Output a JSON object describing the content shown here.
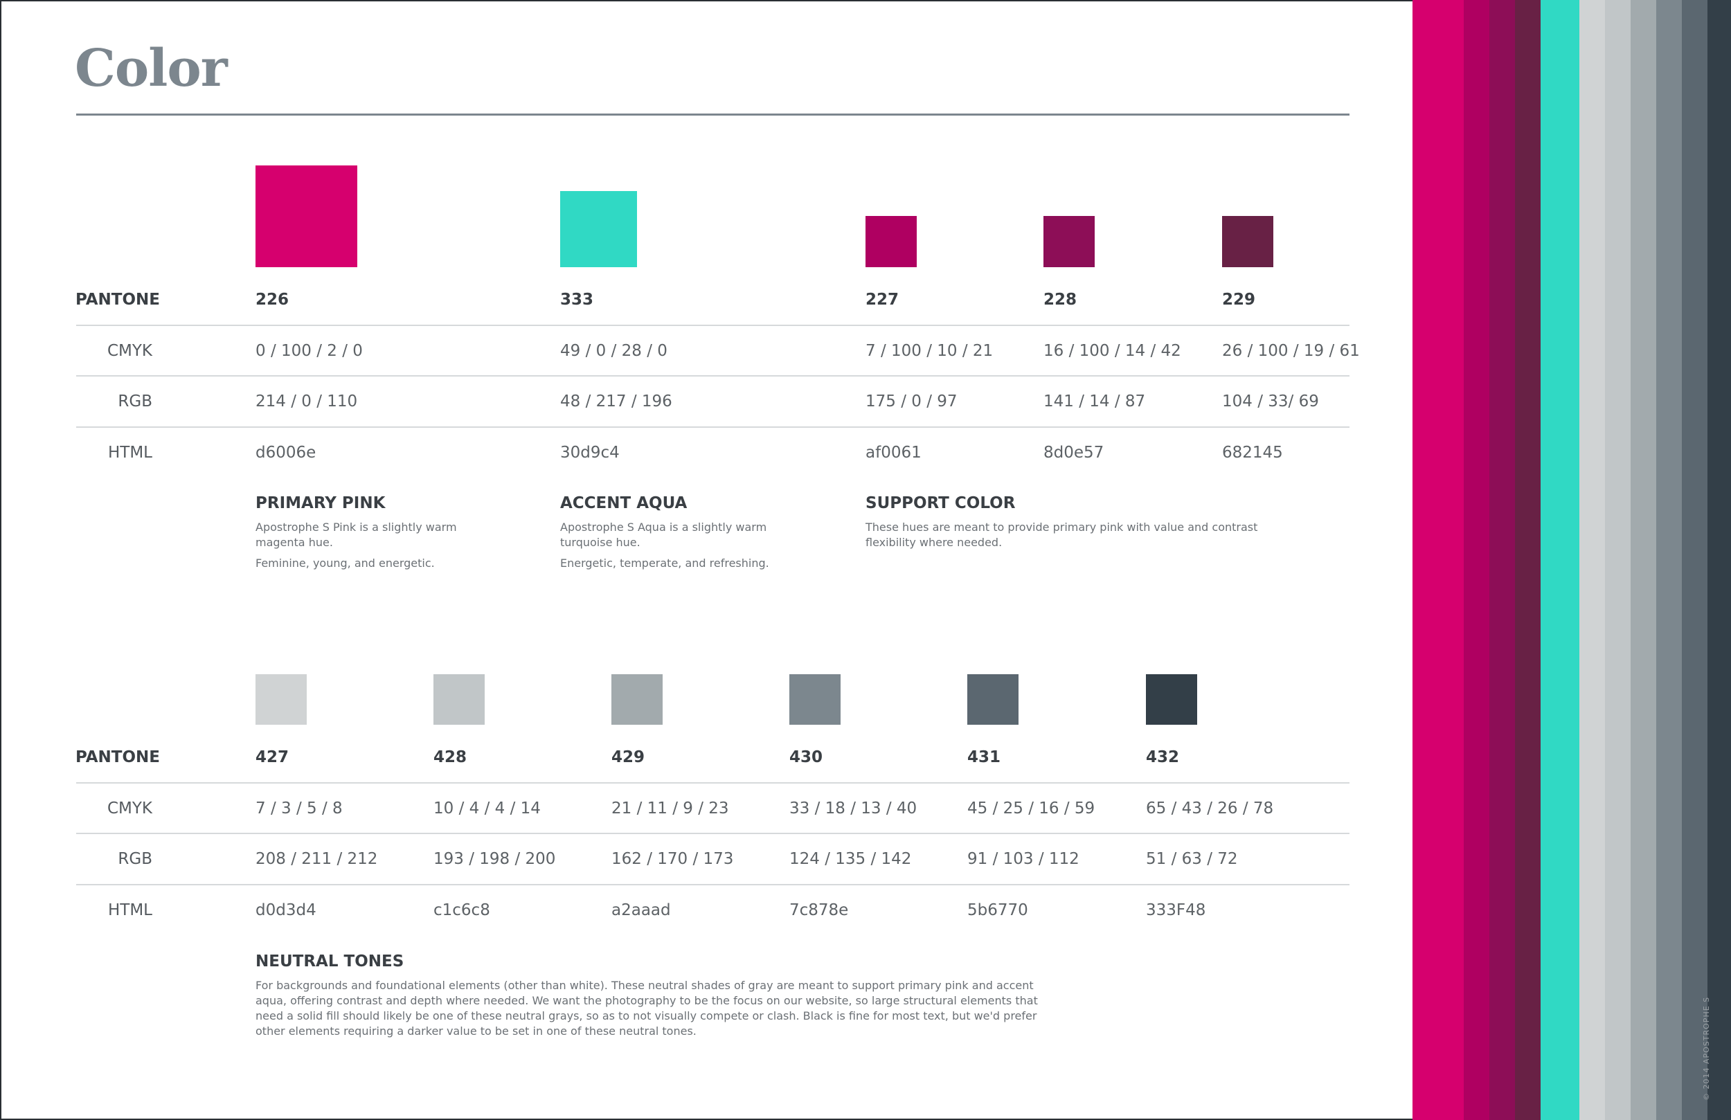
{
  "page": {
    "title": "Color",
    "copyright": "© 2014 APOSTROPHE S"
  },
  "row_labels": {
    "pantone": "PANTONE",
    "cmyk": "CMYK",
    "rgb": "RGB",
    "html": "HTML"
  },
  "primary": {
    "swatches": [
      {
        "pantone": "226",
        "cmyk": "0 / 100 / 2 / 0",
        "rgb": "214 / 0 / 110",
        "html": "d6006e",
        "color": "#d6006e"
      },
      {
        "pantone": "333",
        "cmyk": "49 / 0 / 28 / 0",
        "rgb": "48 / 217 / 196",
        "html": "30d9c4",
        "color": "#30d9c4"
      },
      {
        "pantone": "227",
        "cmyk": "7 / 100 / 10 / 21",
        "rgb": "175 / 0 / 97",
        "html": "af0061",
        "color": "#af0061"
      },
      {
        "pantone": "228",
        "cmyk": "16 / 100 / 14 / 42",
        "rgb": "141 / 14 / 87",
        "html": "8d0e57",
        "color": "#8d0e57"
      },
      {
        "pantone": "229",
        "cmyk": "26 / 100 / 19 / 61",
        "rgb": "104 / 33/ 69",
        "html": "682145",
        "color": "#682145"
      }
    ],
    "descriptions": [
      {
        "heading": "PRIMARY PINK",
        "lines": [
          "Apostrophe S Pink is a slightly warm",
          "magenta hue."
        ],
        "tagline": "Feminine, young, and energetic."
      },
      {
        "heading": "ACCENT AQUA",
        "lines": [
          "Apostrophe S Aqua is a slightly warm",
          "turquoise hue."
        ],
        "tagline": "Energetic, temperate, and refreshing."
      },
      {
        "heading": "SUPPORT COLOR",
        "lines": [
          "These hues are meant to provide primary pink with value and contrast",
          "flexibility where needed."
        ]
      }
    ]
  },
  "neutral": {
    "swatches": [
      {
        "pantone": "427",
        "cmyk": "7 / 3 / 5 / 8",
        "rgb": "208 / 211 / 212",
        "html": "d0d3d4",
        "color": "#d0d3d4"
      },
      {
        "pantone": "428",
        "cmyk": "10 / 4 / 4 / 14",
        "rgb": "193 / 198 / 200",
        "html": "c1c6c8",
        "color": "#c1c6c8"
      },
      {
        "pantone": "429",
        "cmyk": "21 / 11 / 9 / 23",
        "rgb": "162 / 170 / 173",
        "html": "a2aaad",
        "color": "#a2aaad"
      },
      {
        "pantone": "430",
        "cmyk": "33 / 18 / 13 / 40",
        "rgb": "124 / 135 / 142",
        "html": "7c878e",
        "color": "#7c878e"
      },
      {
        "pantone": "431",
        "cmyk": "45 / 25 / 16 / 59",
        "rgb": "91 / 103 / 112",
        "html": "5b6770",
        "color": "#5b6770"
      },
      {
        "pantone": "432",
        "cmyk": "65 / 43 / 26 / 78",
        "rgb": "51 / 63 / 72",
        "html": "333F48",
        "color": "#333f48"
      }
    ],
    "description": {
      "heading": "NEUTRAL TONES",
      "lines": [
        "For backgrounds and foundational elements (other than white). These neutral shades of gray are meant to support primary pink and accent",
        "aqua, offering contrast and depth where needed. We want the photography to be the focus on our website, so large structural elements that",
        "need a solid fill should likely be one of these neutral grays, so as to not visually compete or clash. Black is fine for most text, but we'd prefer",
        "other elements requiring a darker value to be set in one of these neutral tones."
      ]
    }
  },
  "stripes": [
    "#d6006e",
    "#af0061",
    "#8d0e57",
    "#682145",
    "#30d9c4",
    "#d0d3d4",
    "#c1c6c8",
    "#a2aaad",
    "#7c878e",
    "#5b6770",
    "#333f48"
  ]
}
